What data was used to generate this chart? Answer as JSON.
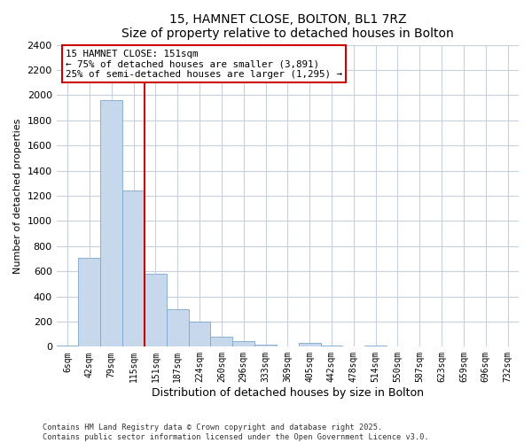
{
  "title": "15, HAMNET CLOSE, BOLTON, BL1 7RZ",
  "subtitle": "Size of property relative to detached houses in Bolton",
  "xlabel": "Distribution of detached houses by size in Bolton",
  "ylabel": "Number of detached properties",
  "bar_color": "#c8d8ec",
  "bar_edge_color": "#7aa8cc",
  "categories": [
    "6sqm",
    "42sqm",
    "79sqm",
    "115sqm",
    "151sqm",
    "187sqm",
    "224sqm",
    "260sqm",
    "296sqm",
    "333sqm",
    "369sqm",
    "405sqm",
    "442sqm",
    "478sqm",
    "514sqm",
    "550sqm",
    "587sqm",
    "623sqm",
    "659sqm",
    "696sqm",
    "732sqm"
  ],
  "values": [
    10,
    710,
    1960,
    1240,
    580,
    300,
    200,
    80,
    45,
    15,
    5,
    30,
    10,
    5,
    10,
    0,
    0,
    0,
    0,
    0,
    0
  ],
  "ylim": [
    0,
    2400
  ],
  "yticks": [
    0,
    200,
    400,
    600,
    800,
    1000,
    1200,
    1400,
    1600,
    1800,
    2000,
    2200,
    2400
  ],
  "property_line_bar_idx": 4,
  "property_line_color": "#cc0000",
  "annotation_title": "15 HAMNET CLOSE: 151sqm",
  "annotation_line1": "← 75% of detached houses are smaller (3,891)",
  "annotation_line2": "25% of semi-detached houses are larger (1,295) →",
  "annotation_box_color": "#cc0000",
  "footer_line1": "Contains HM Land Registry data © Crown copyright and database right 2025.",
  "footer_line2": "Contains public sector information licensed under the Open Government Licence v3.0.",
  "background_color": "#ffffff",
  "grid_color": "#c8d0dc"
}
